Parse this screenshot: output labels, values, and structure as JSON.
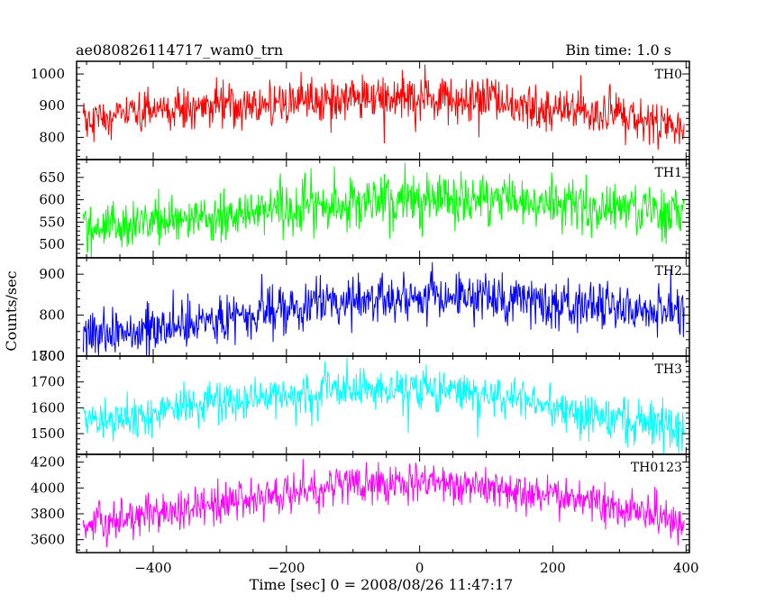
{
  "header": {
    "left": "ae080826114717_wam0_trn",
    "right": "Bin time: 1.0 s"
  },
  "xlabel": "Time [sec] 0 = 2008/08/26 11:47:17",
  "ylabel": "Counts/sec",
  "chart_data": [
    {
      "type": "line",
      "name": "TH0",
      "color": "#ff0000",
      "xlim": [
        -515,
        405
      ],
      "ylim": [
        730,
        1040
      ],
      "yticks": [
        800,
        900,
        1000
      ],
      "x_range": [
        -505,
        397
      ],
      "bin": 1.0,
      "trend": [
        [
          -505,
          858
        ],
        [
          -400,
          875
        ],
        [
          -300,
          900
        ],
        [
          -200,
          912
        ],
        [
          -100,
          920
        ],
        [
          0,
          922
        ],
        [
          100,
          910
        ],
        [
          200,
          890
        ],
        [
          300,
          868
        ],
        [
          397,
          835
        ]
      ],
      "noise_sd": 35
    },
    {
      "type": "line",
      "name": "TH1",
      "color": "#00ff00",
      "xlim": [
        -515,
        405
      ],
      "ylim": [
        470,
        690
      ],
      "yticks": [
        500,
        550,
        600,
        650
      ],
      "x_range": [
        -505,
        397
      ],
      "bin": 1.0,
      "trend": [
        [
          -505,
          535
        ],
        [
          -400,
          548
        ],
        [
          -300,
          565
        ],
        [
          -200,
          578
        ],
        [
          -100,
          590
        ],
        [
          0,
          598
        ],
        [
          100,
          600
        ],
        [
          200,
          592
        ],
        [
          300,
          585
        ],
        [
          397,
          578
        ]
      ],
      "noise_sd": 28
    },
    {
      "type": "line",
      "name": "TH2",
      "color": "#0000ff",
      "xlim": [
        -515,
        405
      ],
      "ylim": [
        700,
        940
      ],
      "yticks": [
        700,
        800,
        900
      ],
      "x_range": [
        -505,
        397
      ],
      "bin": 1.0,
      "trend": [
        [
          -505,
          755
        ],
        [
          -400,
          770
        ],
        [
          -300,
          795
        ],
        [
          -200,
          815
        ],
        [
          -100,
          835
        ],
        [
          0,
          845
        ],
        [
          100,
          842
        ],
        [
          200,
          832
        ],
        [
          300,
          818
        ],
        [
          397,
          810
        ]
      ],
      "noise_sd": 30
    },
    {
      "type": "line",
      "name": "TH3",
      "color": "#00ffff",
      "xlim": [
        -515,
        405
      ],
      "ylim": [
        1420,
        1800
      ],
      "yticks": [
        1500,
        1600,
        1700,
        1800
      ],
      "x_range": [
        -505,
        397
      ],
      "bin": 1.0,
      "trend": [
        [
          -505,
          1540
        ],
        [
          -400,
          1580
        ],
        [
          -300,
          1620
        ],
        [
          -200,
          1650
        ],
        [
          -100,
          1670
        ],
        [
          0,
          1675
        ],
        [
          100,
          1650
        ],
        [
          200,
          1610
        ],
        [
          300,
          1565
        ],
        [
          397,
          1520
        ]
      ],
      "noise_sd": 42
    },
    {
      "type": "line",
      "name": "TH0123",
      "color": "#ff00ff",
      "xlim": [
        -515,
        405
      ],
      "ylim": [
        3500,
        4260
      ],
      "yticks": [
        3600,
        3800,
        4000,
        4200
      ],
      "x_range": [
        -505,
        397
      ],
      "bin": 1.0,
      "trend": [
        [
          -505,
          3700
        ],
        [
          -400,
          3790
        ],
        [
          -300,
          3890
        ],
        [
          -200,
          3960
        ],
        [
          -100,
          4020
        ],
        [
          0,
          4050
        ],
        [
          100,
          4010
        ],
        [
          200,
          3940
        ],
        [
          300,
          3850
        ],
        [
          397,
          3720
        ]
      ],
      "noise_sd": 75
    }
  ],
  "xticks": [
    -400,
    -200,
    0,
    200,
    400
  ]
}
